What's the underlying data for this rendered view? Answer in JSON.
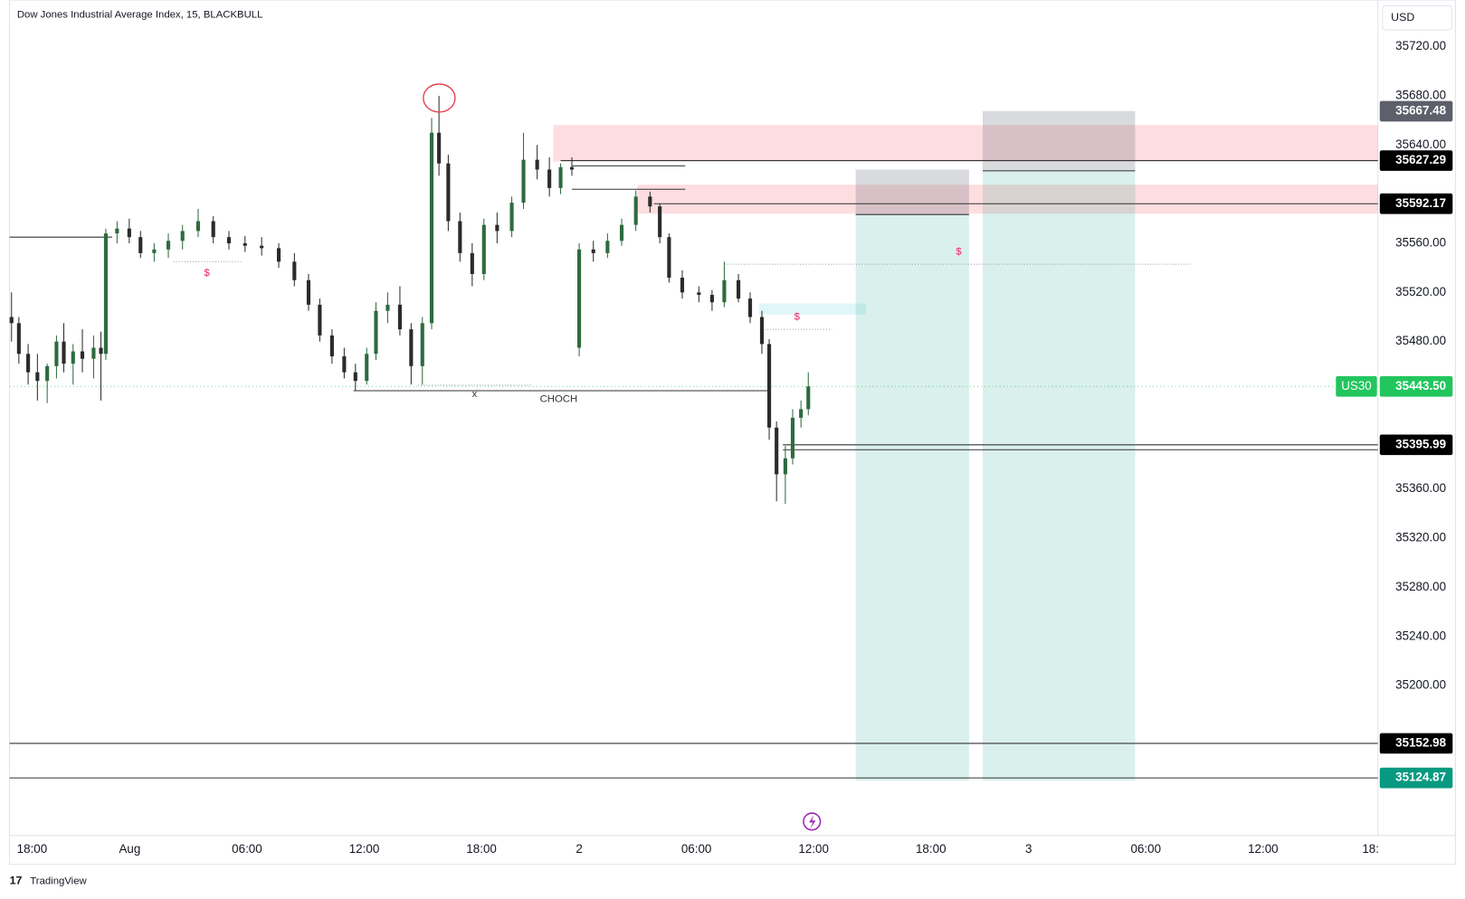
{
  "chart_data": {
    "type": "candlestick",
    "title": "Dow Jones Industrial Average Index, 15, BLACKBULL",
    "currency": "USD",
    "up_color": "#2e6b3f",
    "down_color": "#2b2b2b",
    "x": [
      -4.2,
      -2.7,
      -0.8,
      1.1,
      3.1,
      5.0,
      6.5,
      8.4,
      10.3,
      12.6,
      14.1,
      15.1,
      17.4,
      19.9,
      22.2,
      25.0,
      27.9,
      30.8,
      34.0,
      37.1,
      40.3,
      43.6,
      47.0,
      50.5,
      53.7,
      56.6,
      58.9,
      61.4,
      63.9,
      66.2,
      68.5,
      70.4,
      72.8,
      75.3,
      77.6,
      79.9,
      81.8,
      83.3,
      85.2,
      87.6,
      90.1,
      92.5,
      95.2,
      98.2,
      100.6,
      103.4,
      105.9,
      108.2,
      110.5,
      112.0,
      114.9,
      117.8,
      120.7,
      123.6,
      126.5,
      128.5,
      130.4,
      133.1,
      136.5,
      139.2,
      141.7,
      144.6,
      147.0,
      149.4,
      150.9,
      152.4,
      154.2,
      155.7,
      157.4,
      158.9
    ],
    "open": [
      35500,
      35495,
      35470,
      35455,
      35448,
      35460,
      35480,
      35462,
      35472,
      35466,
      35475,
      35470,
      35568,
      35572,
      35565,
      35552,
      35555,
      35562,
      35570,
      35578,
      35565,
      35560,
      35558,
      35556,
      35545,
      35530,
      35510,
      35485,
      35468,
      35455,
      35448,
      35470,
      35505,
      35510,
      35490,
      35460,
      35495,
      35650,
      35625,
      35578,
      35552,
      35535,
      35575,
      35570,
      35593,
      35628,
      35620,
      35605,
      35622,
      35475,
      35555,
      35552,
      35562,
      35575,
      35598,
      35590,
      35565,
      35532,
      35520,
      35518,
      35512,
      35530,
      35515,
      35500,
      35478,
      35410,
      35372,
      35385,
      35418,
      35425
    ],
    "high": [
      35520,
      35500,
      35478,
      35470,
      35462,
      35485,
      35495,
      35478,
      35490,
      35485,
      35488,
      35572,
      35578,
      35580,
      35570,
      35560,
      35568,
      35575,
      35588,
      35582,
      35570,
      35566,
      35565,
      35560,
      35552,
      35535,
      35515,
      35490,
      35475,
      35462,
      35475,
      35512,
      35520,
      35525,
      35495,
      35500,
      35662,
      35680,
      35632,
      35585,
      35560,
      35580,
      35585,
      35598,
      35650,
      35640,
      35630,
      35625,
      35630,
      35560,
      35562,
      35568,
      35580,
      35603,
      35602,
      35592,
      35568,
      35538,
      35525,
      35522,
      35545,
      35535,
      35520,
      35505,
      35482,
      35415,
      35395,
      35425,
      35432,
      35455
    ],
    "low": [
      35480,
      35462,
      35445,
      35432,
      35430,
      35450,
      35455,
      35445,
      35455,
      35450,
      35432,
      35465,
      35560,
      35560,
      35548,
      35545,
      35548,
      35555,
      35565,
      35560,
      35555,
      35553,
      35550,
      35540,
      35525,
      35505,
      35480,
      35462,
      35450,
      35440,
      35445,
      35465,
      35495,
      35485,
      35445,
      35445,
      35490,
      35615,
      35570,
      35545,
      35525,
      35530,
      35560,
      35565,
      35588,
      35612,
      35598,
      35600,
      35615,
      35468,
      35545,
      35548,
      35558,
      35570,
      35585,
      35560,
      35528,
      35515,
      35512,
      35505,
      35508,
      35512,
      35495,
      35470,
      35400,
      35350,
      35348,
      35380,
      35410,
      35420
    ],
    "close": [
      35495,
      35470,
      35455,
      35448,
      35460,
      35480,
      35462,
      35472,
      35466,
      35475,
      35470,
      35568,
      35572,
      35565,
      35552,
      35555,
      35562,
      35570,
      35578,
      35565,
      35560,
      35558,
      35556,
      35545,
      35530,
      35510,
      35485,
      35468,
      35455,
      35448,
      35470,
      35505,
      35510,
      35490,
      35460,
      35495,
      35650,
      35625,
      35578,
      35552,
      35535,
      35575,
      35570,
      35593,
      35628,
      35620,
      35605,
      35622,
      35620,
      35555,
      35552,
      35562,
      35575,
      35598,
      35590,
      35565,
      35532,
      35520,
      35518,
      35512,
      35530,
      35515,
      35500,
      35478,
      35410,
      35372,
      35385,
      35418,
      35425,
      35443.5
    ],
    "xlim": [
      -4.6,
      275.5
    ],
    "ylim": [
      35078,
      35758
    ],
    "xticks": [
      {
        "value": 0,
        "label": "18:00"
      },
      {
        "value": 20,
        "label": "Aug"
      },
      {
        "value": 44,
        "label": "06:00"
      },
      {
        "value": 68,
        "label": "12:00"
      },
      {
        "value": 92,
        "label": "18:00"
      },
      {
        "value": 112,
        "label": "2"
      },
      {
        "value": 136,
        "label": "06:00"
      },
      {
        "value": 160,
        "label": "12:00"
      },
      {
        "value": 184,
        "label": "18:00"
      },
      {
        "value": 204,
        "label": "3"
      },
      {
        "value": 228,
        "label": "06:00"
      },
      {
        "value": 252,
        "label": "12:00"
      },
      {
        "value": 274,
        "label": "18:"
      }
    ],
    "yticks": [
      {
        "value": 35720,
        "label": "35720.00"
      },
      {
        "value": 35680,
        "label": "35680.00"
      },
      {
        "value": 35640,
        "label": "35640.00"
      },
      {
        "value": 35560,
        "label": "35560.00"
      },
      {
        "value": 35520,
        "label": "35520.00"
      },
      {
        "value": 35480,
        "label": "35480.00"
      },
      {
        "value": 35360,
        "label": "35360.00"
      },
      {
        "value": 35320,
        "label": "35320.00"
      },
      {
        "value": 35280,
        "label": "35280.00"
      },
      {
        "value": 35240,
        "label": "35240.00"
      },
      {
        "value": 35200,
        "label": "35200.00"
      }
    ],
    "zones": [
      {
        "from": 106.7,
        "to": 275.5,
        "top": 35656.2,
        "bottom": 35626.6,
        "color": "rgba(242,54,69,0.17)"
      },
      {
        "from": 123.9,
        "to": 275.5,
        "top": 35607.7,
        "bottom": 35584.1,
        "color": "rgba(242,54,69,0.17)"
      },
      {
        "from": 148.8,
        "to": 170.7,
        "top": 35511,
        "bottom": 35502,
        "color": "rgba(0,188,212,0.12)"
      },
      {
        "from": 168.6,
        "to": 191.8,
        "top": 35620,
        "bottom": 35583.4,
        "color": "rgba(120,123,134,0.28)"
      },
      {
        "from": 168.6,
        "to": 191.8,
        "top": 35583.4,
        "bottom": 35122.6,
        "color": "rgba(8,153,129,0.15)"
      },
      {
        "from": 194.6,
        "to": 225.8,
        "top": 35667.6,
        "bottom": 35619,
        "color": "rgba(120,123,134,0.28)"
      },
      {
        "from": 194.6,
        "to": 225.8,
        "top": 35619,
        "bottom": 35122.6,
        "color": "rgba(8,153,129,0.15)"
      }
    ],
    "lines": [
      {
        "price": 35565,
        "from": -4.6,
        "to": 16.4,
        "style": "solid"
      },
      {
        "price": 35545,
        "from": 28.9,
        "to": 42.8,
        "style": "dotted"
      },
      {
        "price": 35627.29,
        "from": 108.2,
        "to": 275.5,
        "style": "solid"
      },
      {
        "price": 35623,
        "from": 110.5,
        "to": 133.7,
        "style": "solid"
      },
      {
        "price": 35604,
        "from": 110.5,
        "to": 133.7,
        "style": "solid"
      },
      {
        "price": 35592.17,
        "from": 127.3,
        "to": 275.5,
        "style": "solid"
      },
      {
        "price": 35543,
        "from": 141.7,
        "to": 237.3,
        "style": "dotted"
      },
      {
        "price": 35490,
        "from": 149.9,
        "to": 163.7,
        "style": "dotted"
      },
      {
        "price": 35444.5,
        "from": 79,
        "to": 102.5,
        "style": "dotted"
      },
      {
        "price": 35440,
        "from": 65.8,
        "to": 150.7,
        "style": "solid"
      },
      {
        "price": 35395.99,
        "from": 153.7,
        "to": 275.5,
        "style": "solid"
      },
      {
        "price": 35392,
        "from": 153.7,
        "to": 275.5,
        "style": "solid"
      },
      {
        "price": 35152.98,
        "from": -4.6,
        "to": 275.5,
        "style": "solid"
      },
      {
        "price": 35124.87,
        "from": -4.6,
        "to": 275.5,
        "style": "solid"
      },
      {
        "price": 35583.4,
        "from": 168.6,
        "to": 191.8,
        "style": "solid"
      },
      {
        "price": 35619,
        "from": 194.6,
        "to": 225.8,
        "style": "solid"
      },
      {
        "price": 35443.5,
        "from": -4.6,
        "to": 275.5,
        "style": "current"
      }
    ],
    "price_labels": [
      {
        "value": 35667.48,
        "color": "#5d606b"
      },
      {
        "value": 35627.29,
        "color": "#000000"
      },
      {
        "value": 35592.17,
        "color": "#000000"
      },
      {
        "value": 35395.99,
        "color": "#000000"
      },
      {
        "value": 35152.98,
        "color": "#000000"
      },
      {
        "value": 35124.87,
        "color": "#089981"
      }
    ],
    "last_price": {
      "value": 35443.5,
      "label": "35443.50",
      "symbol": "US30",
      "color": "#22c55e"
    },
    "annotations": [
      {
        "text": "$",
        "x": 35.8,
        "y": 35535.6,
        "color": "#e91e63"
      },
      {
        "text": "$",
        "x": 156.6,
        "y": 35500,
        "color": "#e91e63"
      },
      {
        "text": "$",
        "x": 189.7,
        "y": 35553,
        "color": "#e91e63"
      },
      {
        "text": "x",
        "x": 90.6,
        "y": 35437,
        "color": "#333333"
      },
      {
        "text": "CHOCH",
        "x": 107.8,
        "y": 35433,
        "color": "#333333"
      }
    ],
    "brand": "TradingView"
  }
}
